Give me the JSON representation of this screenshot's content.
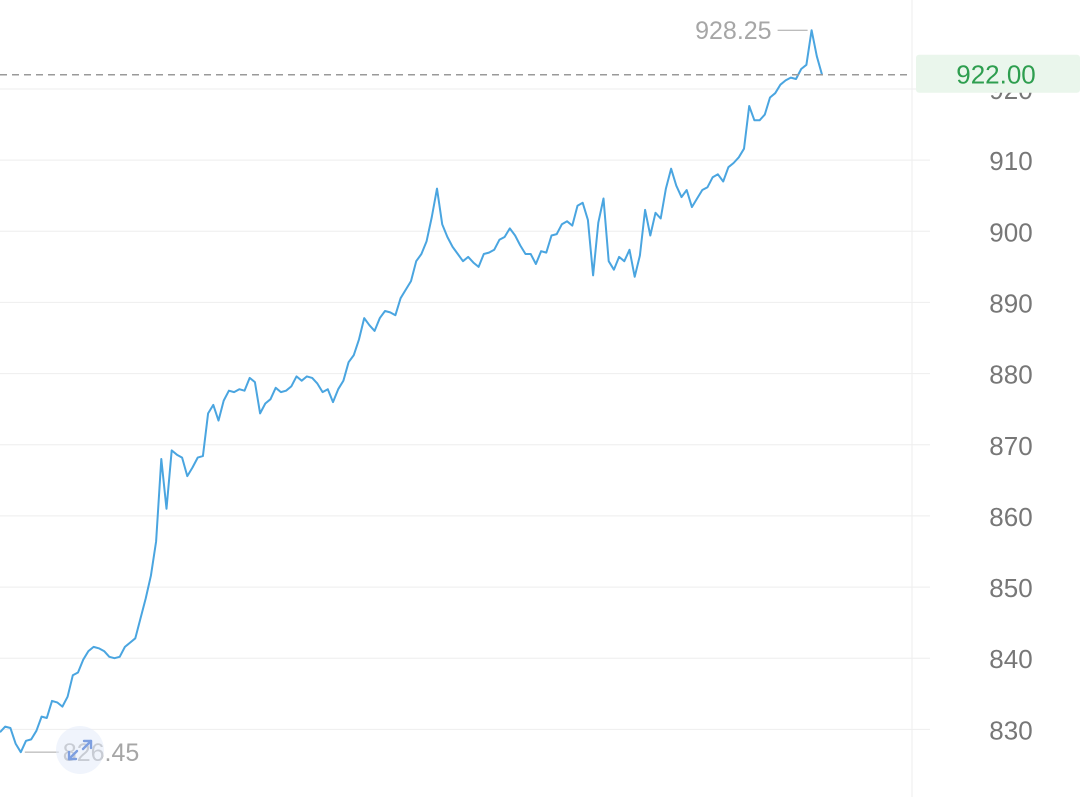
{
  "chart_data": {
    "type": "line",
    "ylim": [
      820.5,
      932.5
    ],
    "y_ticks": [
      "830",
      "840",
      "850",
      "860",
      "870",
      "880",
      "890",
      "900",
      "910",
      "920"
    ],
    "current_price": "922.00",
    "high_label": "928.25",
    "low_label": "826.45",
    "grid": true,
    "series": [
      {
        "values": [
          829.6,
          830.4,
          830.2,
          828.0,
          826.8,
          828.4,
          828.6,
          829.8,
          831.8,
          831.6,
          834.0,
          833.8,
          833.2,
          834.6,
          837.6,
          838.0,
          839.8,
          841.0,
          841.6,
          841.4,
          841.0,
          840.2,
          840.0,
          840.2,
          841.6,
          842.2,
          842.8,
          845.6,
          848.4,
          851.6,
          856.4,
          868.0,
          861.0,
          869.2,
          868.6,
          868.2,
          865.6,
          866.8,
          868.2,
          868.4,
          874.4,
          875.6,
          873.4,
          876.2,
          877.6,
          877.4,
          877.8,
          877.6,
          879.4,
          878.8,
          874.4,
          875.8,
          876.4,
          878.0,
          877.4,
          877.6,
          878.2,
          879.6,
          879.0,
          879.6,
          879.4,
          878.6,
          877.4,
          877.8,
          876.0,
          877.8,
          879.0,
          881.6,
          882.6,
          884.8,
          887.8,
          886.8,
          886.0,
          887.8,
          888.8,
          888.6,
          888.2,
          890.6,
          891.8,
          893.0,
          895.8,
          896.8,
          898.6,
          902.0,
          906.0,
          901.0,
          899.2,
          897.8,
          896.8,
          895.8,
          896.4,
          895.6,
          895.0,
          896.8,
          897.0,
          897.4,
          898.8,
          899.2,
          900.4,
          899.4,
          898.0,
          896.8,
          896.8,
          895.4,
          897.2,
          897.0,
          899.4,
          899.6,
          901.0,
          901.4,
          900.8,
          903.6,
          904.0,
          901.6,
          893.8,
          901.2,
          904.6,
          895.8,
          894.6,
          896.4,
          895.8,
          897.4,
          893.6,
          896.6,
          903.0,
          899.4,
          902.6,
          901.8,
          906.0,
          908.8,
          906.4,
          904.8,
          905.8,
          903.4,
          904.6,
          905.8,
          906.2,
          907.6,
          908.0,
          907.0,
          909.0,
          909.6,
          910.4,
          911.6,
          917.6,
          915.6,
          915.6,
          916.4,
          918.8,
          919.4,
          920.6,
          921.2,
          921.6,
          921.4,
          922.8,
          923.4,
          928.25,
          924.6,
          922.0
        ]
      }
    ]
  },
  "expand_icon": "expand-arrows-icon",
  "colors": {
    "line": "#4aa5e0",
    "current_price": "#2e9e4f",
    "current_price_bg": "#eaf6ec",
    "axis_text": "#777777",
    "annotation_text": "#a6a6a6",
    "grid": "#eeeeee",
    "dashed": "#9a9a9a",
    "icon": "#7e9fe0"
  }
}
